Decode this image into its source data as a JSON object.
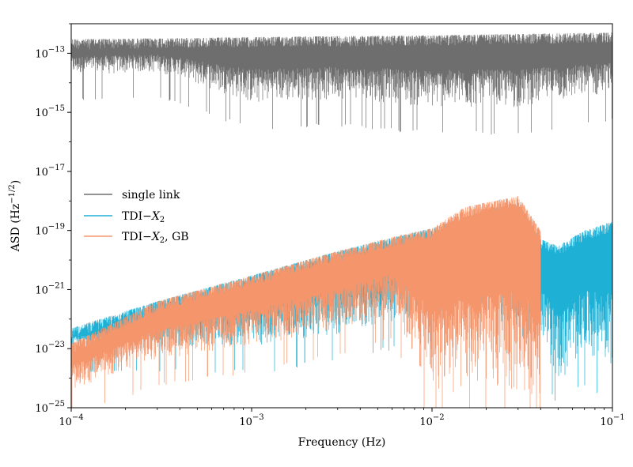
{
  "chart_data": {
    "type": "line",
    "title": "",
    "xlabel": "Frequency (Hz)",
    "ylabel": "ASD (Hz",
    "ylabel_sup": "−1/2",
    "ylabel_close": ")",
    "x_scale": "log",
    "y_scale": "log",
    "xlim": [
      0.0001,
      0.1
    ],
    "ylim": [
      1e-25,
      1e-12
    ],
    "grid": false,
    "legend_position": "center-left",
    "x_ticks": [
      {
        "value": 0.0001,
        "base": "10",
        "exp": "−4"
      },
      {
        "value": 0.001,
        "base": "10",
        "exp": "−3"
      },
      {
        "value": 0.01,
        "base": "10",
        "exp": "−2"
      },
      {
        "value": 0.1,
        "base": "10",
        "exp": "−1"
      }
    ],
    "y_ticks": [
      {
        "value": 1e-13,
        "base": "10",
        "exp": "−13"
      },
      {
        "value": 1e-15,
        "base": "10",
        "exp": "−15"
      },
      {
        "value": 1e-17,
        "base": "10",
        "exp": "−17"
      },
      {
        "value": 1e-19,
        "base": "10",
        "exp": "−19"
      },
      {
        "value": 1e-21,
        "base": "10",
        "exp": "−21"
      },
      {
        "value": 1e-23,
        "base": "10",
        "exp": "−23"
      },
      {
        "value": 1e-25,
        "base": "10",
        "exp": "−25"
      }
    ],
    "series": [
      {
        "name": "single link",
        "color": "#6e6e6e",
        "x": [
          0.0001,
          0.0003,
          0.001,
          0.003,
          0.01,
          0.03,
          0.1
        ],
        "y_upper": [
          3e-13,
          3.2e-13,
          3.5e-13,
          3.8e-13,
          4e-13,
          4.5e-13,
          5e-13
        ],
        "y_lower": [
          1.5e-14,
          2e-14,
          1.5e-15,
          2e-15,
          1e-15,
          1e-15,
          3e-15
        ]
      },
      {
        "name": "TDI−",
        "name_var": "X",
        "name_sub": "2",
        "color": "#1fb0d6",
        "x": [
          0.0001,
          0.0003,
          0.001,
          0.003,
          0.01,
          0.02,
          0.03,
          0.04,
          0.05,
          0.07,
          0.1
        ],
        "y_upper": [
          5e-23,
          4e-22,
          3e-21,
          2e-20,
          1.2e-19,
          5e-19,
          9e-19,
          5e-20,
          3e-20,
          1e-19,
          2e-19
        ],
        "y_lower": [
          1e-23,
          1e-23,
          8e-24,
          2e-23,
          1e-22,
          1e-22,
          1e-23,
          1e-23,
          3e-25,
          3e-24,
          1e-24
        ]
      },
      {
        "name": "TDI−",
        "name_var": "X",
        "name_sub": "2",
        "name_suffix": ", GB",
        "color": "#f5956b",
        "x": [
          0.0001,
          0.0003,
          0.001,
          0.003,
          0.006,
          0.01,
          0.015,
          0.02,
          0.03,
          0.04
        ],
        "y_upper": [
          1.5e-23,
          4e-22,
          3e-21,
          2e-20,
          6e-20,
          1.2e-19,
          6e-19,
          9e-19,
          1.5e-18,
          1e-19
        ],
        "y_lower": [
          3e-25,
          3e-24,
          8e-24,
          3e-23,
          1e-22,
          1e-25,
          1e-25,
          1e-25,
          1e-25,
          1e-25
        ]
      }
    ]
  }
}
